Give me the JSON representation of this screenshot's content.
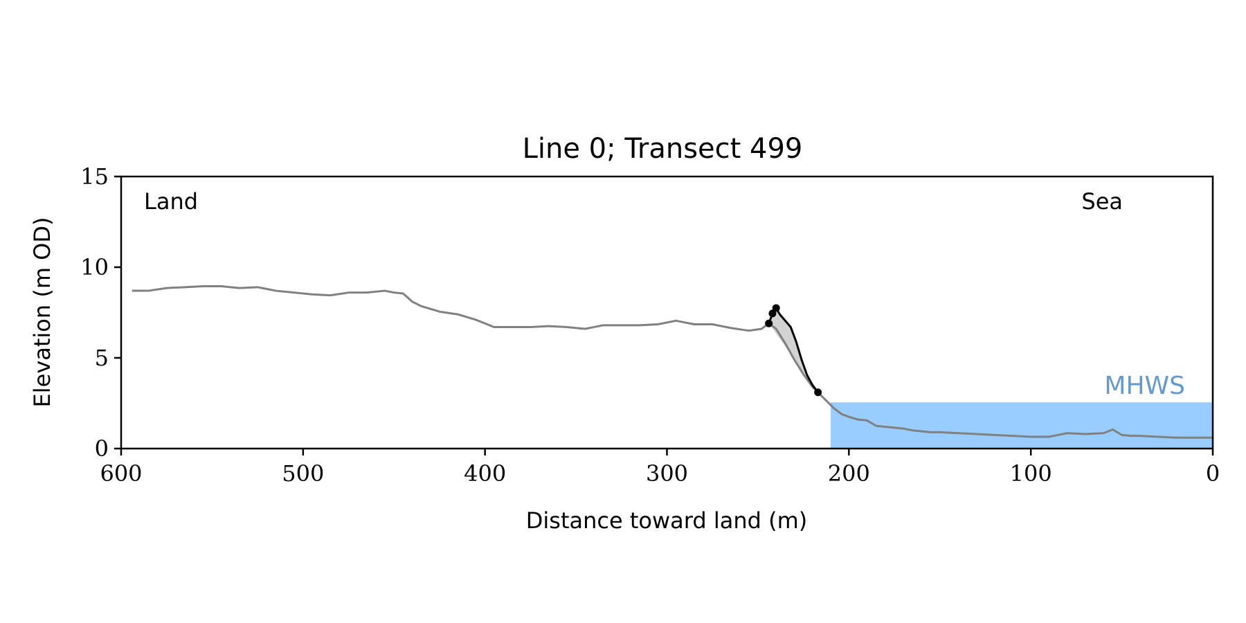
{
  "chart_data": {
    "type": "line",
    "title": "Line 0; Transect 499",
    "xlabel": "Distance toward land (m)",
    "ylabel": "Elevation (m OD)",
    "xlim": [
      600,
      0
    ],
    "ylim": [
      0,
      15
    ],
    "x_ticks": [
      600,
      500,
      400,
      300,
      200,
      100,
      0
    ],
    "y_ticks": [
      0,
      5,
      10,
      15
    ],
    "grid": false,
    "annotations": {
      "land": "Land",
      "sea": "Sea",
      "mhws": "MHWS"
    },
    "mhws_level": 2.55,
    "mhws_x_extent": [
      210,
      0
    ],
    "colors": {
      "profile": "#808080",
      "cliff": "#000000",
      "cliff_fill": "#d3d3d3",
      "water": "#99ccff",
      "mhws_text": "#6699cc"
    },
    "profile": {
      "x": [
        594,
        585,
        575,
        565,
        555,
        545,
        535,
        525,
        515,
        505,
        495,
        485,
        475,
        465,
        455,
        450,
        445,
        440,
        435,
        425,
        415,
        405,
        395,
        385,
        375,
        365,
        355,
        345,
        335,
        325,
        315,
        305,
        295,
        290,
        285,
        275,
        265,
        255,
        248,
        244,
        240,
        235,
        230,
        225,
        220,
        217,
        212,
        208,
        204,
        200,
        195,
        190,
        185,
        180,
        175,
        170,
        165,
        160,
        155,
        150,
        140,
        130,
        120,
        110,
        100,
        90,
        80,
        70,
        60,
        55,
        50,
        45,
        40,
        30,
        20,
        10,
        0
      ],
      "y": [
        8.7,
        8.7,
        8.85,
        8.9,
        8.95,
        8.95,
        8.85,
        8.9,
        8.7,
        8.6,
        8.5,
        8.45,
        8.6,
        8.6,
        8.7,
        8.6,
        8.55,
        8.1,
        7.85,
        7.55,
        7.4,
        7.1,
        6.7,
        6.7,
        6.7,
        6.75,
        6.7,
        6.6,
        6.8,
        6.8,
        6.8,
        6.85,
        7.05,
        6.95,
        6.85,
        6.85,
        6.65,
        6.5,
        6.6,
        6.9,
        6.6,
        5.8,
        4.9,
        4.1,
        3.4,
        3.1,
        2.6,
        2.2,
        1.9,
        1.75,
        1.6,
        1.55,
        1.25,
        1.2,
        1.15,
        1.1,
        1.0,
        0.95,
        0.9,
        0.9,
        0.85,
        0.8,
        0.75,
        0.7,
        0.65,
        0.65,
        0.85,
        0.8,
        0.85,
        1.05,
        0.75,
        0.7,
        0.7,
        0.65,
        0.6,
        0.6,
        0.6
      ]
    },
    "cliff": {
      "x": [
        244,
        242,
        240,
        238,
        235,
        232,
        229,
        226,
        223,
        220,
        217
      ],
      "y": [
        6.9,
        7.45,
        7.75,
        7.4,
        7.05,
        6.7,
        5.9,
        4.9,
        4.05,
        3.5,
        3.1
      ]
    },
    "cliff_markers": {
      "x": [
        244,
        242,
        240,
        217
      ],
      "y": [
        6.9,
        7.45,
        7.75,
        3.1
      ]
    }
  }
}
